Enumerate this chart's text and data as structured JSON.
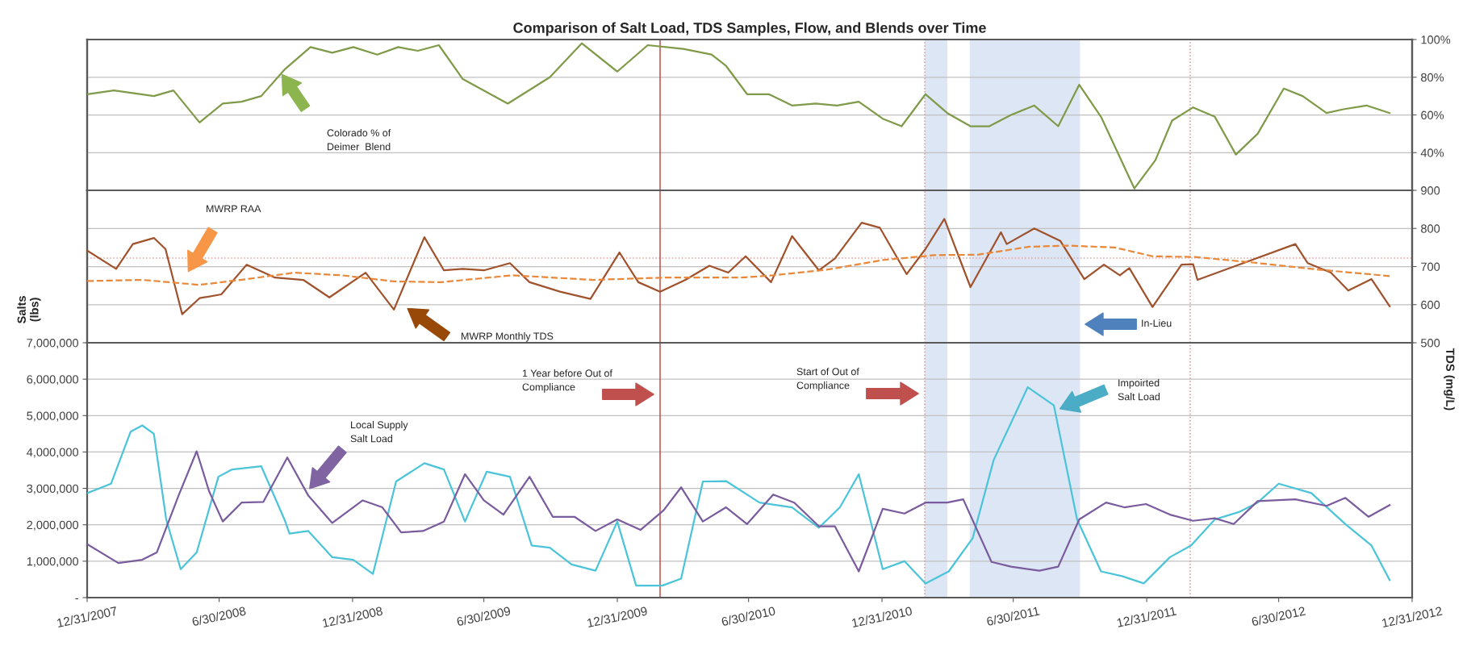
{
  "chart_data": [
    {
      "type": "line",
      "title": "Comparison of Salt Load, TDS Samples, Flow, and Blends over Time",
      "xlim": [
        "2007-12-31",
        "2012-12-31"
      ],
      "y2lim": [
        20,
        100
      ],
      "y2ticks": [
        {
          "value": 40,
          "label": "40%"
        },
        {
          "value": 60,
          "label": "60%"
        },
        {
          "value": 80,
          "label": "80%"
        },
        {
          "value": 100,
          "label": "100%"
        }
      ],
      "tick_labels": "y2",
      "grid": "y",
      "legend": false,
      "series": [
        {
          "color": "#7f9a48",
          "axis": "y2",
          "x": [
            "2007-12-31",
            "2008-02-06",
            "2008-04-01",
            "2008-04-28",
            "2008-06-03",
            "2008-07-05",
            "2008-07-31",
            "2008-08-27",
            "2008-09-28",
            "2008-11-03",
            "2008-12-03",
            "2009-01-01",
            "2009-02-03",
            "2009-03-04",
            "2009-03-31",
            "2009-04-29",
            "2009-06-01",
            "2009-08-02",
            "2009-09-29",
            "2009-11-12",
            "2009-12-31",
            "2010-02-11",
            "2010-04-01",
            "2010-05-10",
            "2010-05-30",
            "2010-06-28",
            "2010-07-28",
            "2010-08-29",
            "2010-10-01",
            "2010-10-30",
            "2010-11-29",
            "2011-01-01",
            "2011-01-27",
            "2011-03-01",
            "2011-03-31",
            "2011-05-02",
            "2011-05-28",
            "2011-06-27",
            "2011-07-29",
            "2011-08-31",
            "2011-09-29",
            "2011-10-29",
            "2011-12-14",
            "2012-01-12",
            "2012-02-04",
            "2012-03-04",
            "2012-04-03",
            "2012-05-02",
            "2012-06-01",
            "2012-07-07",
            "2012-08-02",
            "2012-09-04",
            "2012-09-27",
            "2012-10-29",
            "2012-11-30"
          ],
          "values": [
            71,
            73,
            70,
            73,
            56,
            66,
            67,
            70,
            84,
            96,
            93,
            96,
            92,
            96,
            94,
            97,
            79,
            66,
            80,
            98,
            83,
            97,
            95,
            92,
            86,
            71,
            71,
            65,
            66,
            65,
            67,
            58,
            54,
            71,
            61,
            54,
            54,
            60,
            65,
            54,
            76,
            59,
            21,
            36,
            57,
            64,
            59,
            39,
            50,
            74,
            70,
            61,
            63,
            65,
            61
          ]
        }
      ],
      "ref_lines": [
        {
          "axis": "x",
          "value": "2010-02-28",
          "color": "#c0504d",
          "line_style": "solid"
        },
        {
          "axis": "x",
          "value": "2011-02-28",
          "color": "#d99694",
          "line_style": "dotted"
        },
        {
          "axis": "x",
          "value": "2012-02-29",
          "color": "#d99694",
          "line_style": "dotted"
        }
      ],
      "bands": [
        {
          "axis": "x",
          "from": "2011-02-28",
          "to": "2011-03-31",
          "color": "#dce6f4"
        },
        {
          "axis": "x",
          "from": "2011-05-01",
          "to": "2011-09-30",
          "color": "#dce6f4"
        }
      ],
      "annotations": [
        "Colorado % of\nDeimer  Blend"
      ]
    },
    {
      "type": "line",
      "xlim": [
        "2007-12-31",
        "2012-12-31"
      ],
      "y2lim": [
        500,
        900
      ],
      "y2ticks": [
        500,
        600,
        700,
        800,
        900
      ],
      "y2label": "TDS (mg/L)",
      "tick_labels": "y2",
      "grid": "y",
      "legend": false,
      "series": [
        {
          "color": "#a0522d",
          "axis": "y2",
          "line_style": "solid",
          "x": [
            "2007-12-31",
            "2008-02-09",
            "2008-03-03",
            "2008-04-01",
            "2008-04-17",
            "2008-05-10",
            "2008-06-03",
            "2008-07-03",
            "2008-08-07",
            "2008-09-15",
            "2008-10-24",
            "2008-11-29",
            "2009-01-18",
            "2009-02-26",
            "2009-04-09",
            "2009-05-06",
            "2009-06-01",
            "2009-06-30",
            "2009-08-05",
            "2009-09-01",
            "2009-10-13",
            "2009-11-24",
            "2010-01-03",
            "2010-01-29",
            "2010-02-28",
            "2010-04-04",
            "2010-05-07",
            "2010-06-02",
            "2010-06-26",
            "2010-07-31",
            "2010-08-29",
            "2010-10-05",
            "2010-10-27",
            "2010-12-03",
            "2010-12-28",
            "2011-02-03",
            "2011-03-01",
            "2011-03-27",
            "2011-05-02",
            "2011-06-13",
            "2011-06-21",
            "2011-07-29",
            "2011-09-03",
            "2011-10-06",
            "2011-11-02",
            "2011-11-24",
            "2011-12-07",
            "2012-01-08",
            "2012-02-17",
            "2012-03-04",
            "2012-03-10",
            "2012-07-23",
            "2012-08-09",
            "2012-09-10",
            "2012-10-04",
            "2012-11-05",
            "2012-11-30"
          ],
          "values": [
            742,
            694,
            759,
            775,
            746,
            575,
            617,
            627,
            705,
            671,
            665,
            619,
            684,
            587,
            777,
            690,
            694,
            690,
            709,
            659,
            634,
            615,
            737,
            659,
            634,
            665,
            702,
            684,
            727,
            659,
            780,
            690,
            721,
            815,
            802,
            680,
            746,
            825,
            646,
            790,
            759,
            800,
            767,
            667,
            705,
            677,
            696,
            594,
            705,
            706,
            665,
            759,
            709,
            684,
            637,
            667,
            596
          ]
        },
        {
          "color": "#e8883a",
          "axis": "y2",
          "line_style": "dashed",
          "x": [
            "2007-12-31",
            "2008-03-16",
            "2008-06-03",
            "2008-08-07",
            "2008-10-12",
            "2008-12-16",
            "2009-02-26",
            "2009-05-02",
            "2009-08-08",
            "2009-11-28",
            "2010-03-06",
            "2010-06-19",
            "2010-08-03",
            "2010-10-17",
            "2011-01-01",
            "2011-03-14",
            "2011-05-12",
            "2011-07-22",
            "2011-09-13",
            "2011-11-17",
            "2012-01-08",
            "2012-03-07",
            "2012-05-18",
            "2012-08-24",
            "2012-11-30"
          ],
          "values": [
            662,
            665,
            652,
            667,
            684,
            677,
            661,
            659,
            677,
            665,
            671,
            671,
            677,
            692,
            717,
            730,
            731,
            752,
            755,
            750,
            727,
            725,
            712,
            692,
            675
          ]
        }
      ],
      "ref_lines": [
        {
          "axis": "y2",
          "value": 722,
          "color": "#e6a0a0",
          "line_style": "dotted"
        },
        {
          "axis": "x",
          "value": "2010-02-28",
          "color": "#c0504d",
          "line_style": "solid"
        },
        {
          "axis": "x",
          "value": "2011-02-28",
          "color": "#d99694",
          "line_style": "dotted"
        },
        {
          "axis": "x",
          "value": "2012-02-29",
          "color": "#d99694",
          "line_style": "dotted"
        }
      ],
      "bands": [
        {
          "axis": "x",
          "from": "2011-02-28",
          "to": "2011-03-31",
          "color": "#dce6f4"
        },
        {
          "axis": "x",
          "from": "2011-05-01",
          "to": "2011-09-30",
          "color": "#dce6f4"
        }
      ],
      "annotations": [
        "MWRP RAA",
        "MWRP Monthly TDS",
        "In-Lieu"
      ]
    },
    {
      "type": "line",
      "xlim": [
        "2007-12-31",
        "2012-12-31"
      ],
      "xticks": [
        {
          "value": "2007-12-31",
          "label": "12/31/2007"
        },
        {
          "value": "2008-06-30",
          "label": "6/30/2008"
        },
        {
          "value": "2008-12-31",
          "label": "12/31/2008"
        },
        {
          "value": "2009-06-30",
          "label": "6/30/2009"
        },
        {
          "value": "2009-12-31",
          "label": "12/31/2009"
        },
        {
          "value": "2010-06-30",
          "label": "6/30/2010"
        },
        {
          "value": "2010-12-31",
          "label": "12/31/2010"
        },
        {
          "value": "2011-06-30",
          "label": "6/30/2011"
        },
        {
          "value": "2011-12-31",
          "label": "12/31/2011"
        },
        {
          "value": "2012-06-30",
          "label": "6/30/2012"
        },
        {
          "value": "2012-12-31",
          "label": "12/31/2012"
        }
      ],
      "ylim": [
        0,
        7000000
      ],
      "yticks": [
        {
          "value": 0,
          "label": "-"
        },
        {
          "value": 1000000,
          "label": "1,000,000"
        },
        {
          "value": 2000000,
          "label": "2,000,000"
        },
        {
          "value": 3000000,
          "label": "3,000,000"
        },
        {
          "value": 4000000,
          "label": "4,000,000"
        },
        {
          "value": 5000000,
          "label": "5,000,000"
        },
        {
          "value": 6000000,
          "label": "6,000,000"
        },
        {
          "value": 7000000,
          "label": "7,000,000"
        }
      ],
      "ylabel": "Salts\n(lbs)",
      "grid": "y",
      "legend": false,
      "series": [
        {
          "color": "#4bc4d9",
          "x": [
            "2007-12-31",
            "2008-02-02",
            "2008-02-29",
            "2008-03-16",
            "2008-04-01",
            "2008-04-18",
            "2008-05-08",
            "2008-05-30",
            "2008-06-29",
            "2008-07-18",
            "2008-08-27",
            "2008-09-28",
            "2008-10-05",
            "2008-10-31",
            "2008-12-03",
            "2009-01-01",
            "2009-01-28",
            "2009-03-01",
            "2009-04-09",
            "2009-05-06",
            "2009-06-04",
            "2009-07-04",
            "2009-08-05",
            "2009-09-04",
            "2009-09-29",
            "2009-10-29",
            "2009-12-01",
            "2009-12-31",
            "2010-01-26",
            "2010-03-03",
            "2010-03-29",
            "2010-04-28",
            "2010-05-30",
            "2010-07-15",
            "2010-08-29",
            "2010-10-05",
            "2010-11-03",
            "2010-11-29",
            "2011-01-01",
            "2011-01-31",
            "2011-03-01",
            "2011-04-02",
            "2011-05-05",
            "2011-06-03",
            "2011-07-20",
            "2011-08-25",
            "2011-09-26",
            "2011-10-29",
            "2011-11-27",
            "2011-12-27",
            "2012-02-01",
            "2012-03-01",
            "2012-04-03",
            "2012-05-06",
            "2012-06-01",
            "2012-06-30",
            "2012-08-14",
            "2012-09-30",
            "2012-11-05",
            "2012-11-30"
          ],
          "values": [
            2870000,
            3130000,
            4560000,
            4730000,
            4500000,
            2150000,
            780000,
            1240000,
            3320000,
            3520000,
            3610000,
            2150000,
            1760000,
            1830000,
            1110000,
            1040000,
            650000,
            3190000,
            3690000,
            3520000,
            2090000,
            3460000,
            3320000,
            1430000,
            1370000,
            910000,
            740000,
            2090000,
            330000,
            330000,
            520000,
            3190000,
            3200000,
            2610000,
            2480000,
            1920000,
            2480000,
            3390000,
            780000,
            1000000,
            390000,
            720000,
            1630000,
            3780000,
            5780000,
            5280000,
            2150000,
            720000,
            590000,
            390000,
            1110000,
            1430000,
            2150000,
            2350000,
            2610000,
            3130000,
            2870000,
            2020000,
            1430000,
            480000
          ]
        },
        {
          "color": "#7a5c9e",
          "x": [
            "2007-12-31",
            "2008-02-12",
            "2008-03-16",
            "2008-04-05",
            "2008-05-05",
            "2008-05-30",
            "2008-06-16",
            "2008-07-05",
            "2008-07-31",
            "2008-08-30",
            "2008-10-02",
            "2008-10-31",
            "2008-12-03",
            "2009-01-14",
            "2009-02-10",
            "2009-03-08",
            "2009-04-07",
            "2009-05-06",
            "2009-06-04",
            "2009-06-30",
            "2009-07-27",
            "2009-09-01",
            "2009-10-03",
            "2009-11-02",
            "2009-12-01",
            "2009-12-31",
            "2010-02-01",
            "2010-03-05",
            "2010-03-29",
            "2010-04-28",
            "2010-05-30",
            "2010-06-28",
            "2010-08-03",
            "2010-09-01",
            "2010-10-05",
            "2010-10-27",
            "2010-11-29",
            "2011-01-01",
            "2011-01-31",
            "2011-03-01",
            "2011-03-31",
            "2011-04-22",
            "2011-05-31",
            "2011-06-27",
            "2011-08-05",
            "2011-08-31",
            "2011-09-29",
            "2011-11-05",
            "2011-11-30",
            "2011-12-30",
            "2012-02-01",
            "2012-03-04",
            "2012-04-03",
            "2012-04-29",
            "2012-06-01",
            "2012-07-23",
            "2012-09-04",
            "2012-09-30",
            "2012-11-01",
            "2012-11-30"
          ],
          "values": [
            1470000,
            950000,
            1040000,
            1240000,
            2800000,
            4020000,
            2930000,
            2090000,
            2610000,
            2630000,
            3850000,
            2800000,
            2050000,
            2670000,
            2480000,
            1790000,
            1830000,
            2090000,
            3390000,
            2670000,
            2280000,
            3320000,
            2220000,
            2220000,
            1830000,
            2150000,
            1860000,
            2400000,
            3030000,
            2090000,
            2480000,
            2020000,
            2830000,
            2610000,
            1960000,
            1960000,
            720000,
            2440000,
            2310000,
            2610000,
            2610000,
            2700000,
            980000,
            850000,
            740000,
            850000,
            2150000,
            2610000,
            2480000,
            2570000,
            2280000,
            2110000,
            2180000,
            2020000,
            2650000,
            2700000,
            2520000,
            2740000,
            2220000,
            2540000
          ]
        }
      ],
      "ref_lines": [
        {
          "axis": "x",
          "value": "2010-02-28",
          "color": "#c0504d",
          "line_style": "solid"
        },
        {
          "axis": "x",
          "value": "2011-02-28",
          "color": "#d99694",
          "line_style": "dotted"
        },
        {
          "axis": "x",
          "value": "2012-02-29",
          "color": "#d99694",
          "line_style": "dotted"
        }
      ],
      "bands": [
        {
          "axis": "x",
          "from": "2011-02-28",
          "to": "2011-03-31",
          "color": "#dce6f4"
        },
        {
          "axis": "x",
          "from": "2011-05-01",
          "to": "2011-09-30",
          "color": "#dce6f4"
        }
      ],
      "annotations": [
        "1 Year before Out of\nCompliance",
        "Start of Out of\nCompliance",
        "Impoirted\nSalt Load",
        "Local Supply\nSalt Load"
      ]
    }
  ]
}
